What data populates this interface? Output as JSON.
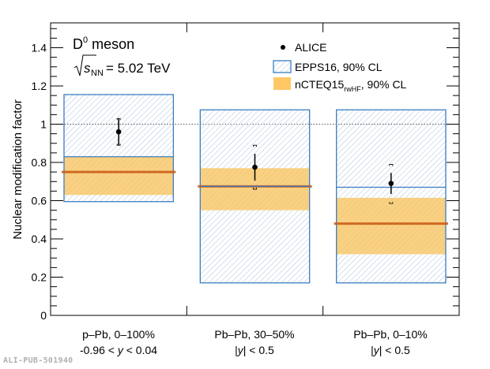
{
  "chart_data": {
    "type": "bar",
    "title": "D0 meson",
    "title_main": "D",
    "title_sup": "0",
    "title_rest": " meson",
    "energy_label": {
      "sqrt": "s",
      "sub": "NN",
      "rest": " = 5.02 TeV"
    },
    "ylabel": "Nuclear modification factor",
    "xlabel": "",
    "ylim": [
      0,
      1.53
    ],
    "yticks": [
      0,
      0.2,
      0.4,
      0.6,
      0.8,
      1,
      1.2,
      1.4
    ],
    "ytick_labels": [
      "0",
      "0.2",
      "0.4",
      "0.6",
      "0.8",
      "1",
      "1.2",
      "1.4"
    ],
    "reference_line": 1.0,
    "categories": [
      {
        "line1": "p–Pb, 0–100%",
        "line2_pre": "-0.96 < ",
        "line2_var": "y",
        "line2_post": " < 0.04"
      },
      {
        "line1": "Pb–Pb, 30–50%",
        "line2_pre": "|",
        "line2_var": "y",
        "line2_post": "| < 0.5"
      },
      {
        "line1": "Pb–Pb, 0–10%",
        "line2_pre": "|",
        "line2_var": "y",
        "line2_post": "| < 0.5"
      }
    ],
    "legend": {
      "placement": "top-right",
      "entries": [
        {
          "label": "ALICE",
          "kind": "marker"
        },
        {
          "label": "EPPS16, 90% CL",
          "kind": "hatched-box"
        },
        {
          "label_main": "nCTEQ15",
          "label_sub": "rwHF",
          "label_rest": ", 90% CL",
          "kind": "filled-box"
        }
      ]
    },
    "series": [
      {
        "name": "ALICE",
        "values": [
          0.96,
          0.775,
          0.69
        ],
        "stat_err": [
          0.07,
          0.07,
          0.055
        ],
        "sys_low": [
          0.89,
          0.66,
          0.585
        ],
        "sys_high": [
          1.03,
          0.89,
          0.79
        ]
      },
      {
        "name": "EPPS16, 90% CL",
        "low": [
          0.595,
          0.17,
          0.17
        ],
        "high": [
          1.155,
          1.075,
          1.075
        ],
        "central": [
          null,
          0.675,
          0.67
        ]
      },
      {
        "name": "nCTEQ15rwHF, 90% CL",
        "low": [
          0.63,
          0.55,
          0.32
        ],
        "high": [
          0.83,
          0.77,
          0.615
        ],
        "central": [
          0.75,
          0.675,
          0.48
        ]
      }
    ],
    "colors": {
      "epps_edge": "#3a7ec0",
      "epps_hatch": "#b9cbe3",
      "ncteq_fill": "#fdc864",
      "ncteq_line": "#cc5f1a",
      "marker": "#000000",
      "axis": "#000000"
    }
  },
  "watermark": "ALI-PUB-501940"
}
